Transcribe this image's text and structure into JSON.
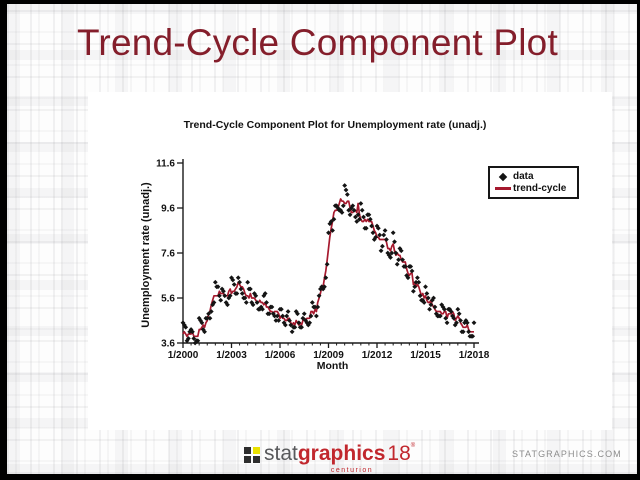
{
  "slide": {
    "title": "Trend-Cycle Component Plot"
  },
  "colors": {
    "title_maroon": "#841e2b",
    "trend_red": "#a6192e",
    "data_black": "#141414",
    "axis_black": "#1a1a1a",
    "logo_red": "#c1272d",
    "logo_gray": "#58595b",
    "logo_dark_square": "#2e2e2e",
    "logo_yellow": "#eae100",
    "url_gray": "#8c8c8c"
  },
  "footer": {
    "logo": {
      "stat": "stat",
      "graphics": "graphics",
      "number": "18",
      "registered": "®",
      "centurion": "centurion"
    },
    "site_url": "STATGRAPHICS.COM"
  },
  "chart_data": {
    "type": "scatter+line",
    "title": "Trend-Cycle Component Plot for Unemployment rate (unadj.)",
    "xlabel": "Month",
    "ylabel": "Unemployment rate (unadj.)",
    "x_start": "1/2000",
    "x_end": "1/2018",
    "x_tick_labels": [
      "1/2000",
      "1/2003",
      "1/2006",
      "1/2009",
      "1/2012",
      "1/2015",
      "1/2018"
    ],
    "x_tick_month_index": [
      0,
      36,
      72,
      108,
      144,
      180,
      216
    ],
    "minor_tick_every_months": 6,
    "y_ticks": [
      3.6,
      5.6,
      7.6,
      9.6,
      11.6
    ],
    "ylim": [
      3.6,
      11.6
    ],
    "grid": false,
    "legend_position": "outside-top-right",
    "legend": [
      {
        "label": "data",
        "marker": "diamond",
        "color": "#141414"
      },
      {
        "label": "trend-cycle",
        "marker": "line",
        "color": "#a6192e"
      }
    ],
    "series": [
      {
        "name": "data",
        "type": "scatter",
        "marker": "diamond",
        "color": "#141414",
        "values": [
          4.5,
          4.4,
          4.3,
          3.7,
          3.8,
          4.1,
          4.2,
          4.1,
          3.8,
          3.6,
          3.7,
          3.7,
          4.7,
          4.6,
          4.5,
          4.2,
          4.1,
          4.7,
          4.7,
          4.9,
          4.7,
          5.0,
          5.3,
          5.4,
          6.3,
          6.1,
          6.1,
          5.7,
          5.5,
          6.0,
          5.9,
          5.7,
          5.4,
          5.3,
          5.6,
          5.7,
          6.5,
          6.4,
          6.2,
          5.8,
          5.8,
          6.5,
          6.3,
          6.0,
          5.8,
          5.6,
          5.6,
          5.4,
          6.3,
          6.0,
          6.0,
          5.4,
          5.3,
          5.8,
          5.7,
          5.4,
          5.1,
          5.1,
          5.2,
          5.1,
          5.7,
          5.8,
          5.4,
          4.9,
          4.9,
          5.2,
          5.2,
          4.9,
          4.8,
          4.6,
          4.8,
          4.6,
          5.1,
          5.1,
          4.8,
          4.5,
          4.4,
          4.8,
          5.0,
          4.6,
          4.4,
          4.1,
          4.3,
          4.3,
          5.0,
          4.9,
          4.5,
          4.3,
          4.3,
          4.7,
          4.9,
          4.6,
          4.5,
          4.4,
          4.5,
          4.8,
          5.4,
          5.2,
          5.2,
          4.8,
          5.2,
          5.7,
          6.0,
          6.1,
          6.0,
          6.1,
          6.5,
          7.1,
          8.5,
          8.9,
          9.0,
          8.6,
          9.1,
          9.7,
          9.7,
          9.6,
          9.5,
          9.5,
          9.4,
          9.7,
          10.6,
          10.4,
          10.2,
          9.5,
          9.3,
          9.6,
          9.7,
          9.5,
          9.2,
          9.0,
          9.3,
          9.1,
          9.8,
          9.5,
          9.2,
          8.7,
          8.7,
          9.3,
          9.3,
          9.1,
          8.8,
          8.5,
          8.2,
          8.3,
          8.8,
          8.7,
          8.4,
          7.7,
          7.9,
          8.4,
          8.6,
          8.2,
          7.6,
          7.5,
          7.4,
          7.6,
          8.5,
          8.1,
          7.6,
          7.1,
          7.3,
          7.8,
          7.7,
          7.3,
          7.0,
          7.0,
          6.6,
          6.5,
          7.0,
          7.0,
          6.8,
          5.9,
          6.1,
          6.3,
          6.5,
          6.3,
          5.7,
          5.5,
          5.5,
          5.4,
          6.1,
          5.8,
          5.6,
          5.1,
          5.3,
          5.5,
          5.6,
          5.2,
          4.9,
          4.8,
          4.8,
          4.8,
          5.3,
          5.2,
          5.1,
          4.7,
          4.5,
          5.1,
          5.1,
          5.0,
          4.8,
          4.7,
          4.4,
          4.5,
          5.1,
          4.9,
          4.6,
          4.1,
          4.1,
          4.5,
          4.6,
          4.5,
          4.1,
          3.9,
          3.9,
          3.9,
          4.5
        ]
      },
      {
        "name": "trend-cycle",
        "type": "line",
        "color": "#a6192e",
        "values": [
          4.0,
          4.1,
          4.0,
          3.9,
          4.0,
          4.0,
          4.0,
          4.1,
          3.9,
          3.9,
          3.9,
          3.9,
          4.2,
          4.2,
          4.3,
          4.4,
          4.3,
          4.5,
          4.6,
          4.9,
          5.0,
          5.3,
          5.5,
          5.7,
          5.7,
          5.7,
          5.7,
          5.9,
          5.8,
          5.8,
          5.8,
          5.7,
          5.7,
          5.7,
          5.9,
          6.0,
          5.8,
          5.9,
          5.9,
          6.0,
          6.1,
          6.3,
          6.2,
          6.1,
          6.1,
          6.0,
          5.8,
          5.7,
          5.7,
          5.6,
          5.8,
          5.6,
          5.6,
          5.6,
          5.5,
          5.4,
          5.4,
          5.5,
          5.4,
          5.4,
          5.3,
          5.4,
          5.2,
          5.2,
          5.1,
          5.0,
          5.0,
          4.9,
          5.0,
          5.0,
          5.0,
          4.9,
          4.7,
          4.8,
          4.7,
          4.7,
          4.6,
          4.6,
          4.7,
          4.7,
          4.5,
          4.4,
          4.5,
          4.4,
          4.6,
          4.5,
          4.4,
          4.5,
          4.4,
          4.6,
          4.7,
          4.6,
          4.7,
          4.7,
          4.7,
          5.0,
          5.0,
          4.9,
          5.1,
          5.0,
          5.4,
          5.6,
          5.8,
          6.1,
          6.1,
          6.5,
          6.8,
          7.3,
          7.8,
          8.3,
          8.7,
          9.0,
          9.4,
          9.5,
          9.5,
          9.6,
          9.8,
          10.0,
          9.9,
          9.9,
          9.8,
          9.8,
          9.9,
          9.9,
          9.6,
          9.4,
          9.4,
          9.5,
          9.5,
          9.4,
          9.8,
          9.3,
          9.1,
          9.0,
          9.0,
          9.1,
          9.0,
          9.1,
          9.0,
          9.0,
          9.0,
          8.8,
          8.6,
          8.5,
          8.3,
          8.3,
          8.2,
          8.2,
          8.2,
          8.2,
          8.2,
          8.1,
          7.8,
          7.8,
          7.7,
          7.9,
          8.0,
          7.7,
          7.5,
          7.6,
          7.5,
          7.5,
          7.3,
          7.2,
          7.2,
          7.2,
          6.9,
          6.7,
          6.6,
          6.7,
          6.7,
          6.2,
          6.3,
          6.1,
          6.2,
          6.1,
          5.9,
          5.7,
          5.8,
          5.6,
          5.7,
          5.5,
          5.4,
          5.4,
          5.5,
          5.3,
          5.2,
          5.1,
          5.0,
          5.0,
          5.0,
          5.0,
          4.9,
          4.9,
          5.0,
          5.0,
          4.7,
          4.9,
          4.9,
          4.9,
          5.0,
          4.9,
          4.6,
          4.7,
          4.8,
          4.7,
          4.5,
          4.4,
          4.3,
          4.3,
          4.3,
          4.4,
          4.2,
          4.1,
          4.1,
          4.1,
          4.1
        ]
      }
    ]
  }
}
